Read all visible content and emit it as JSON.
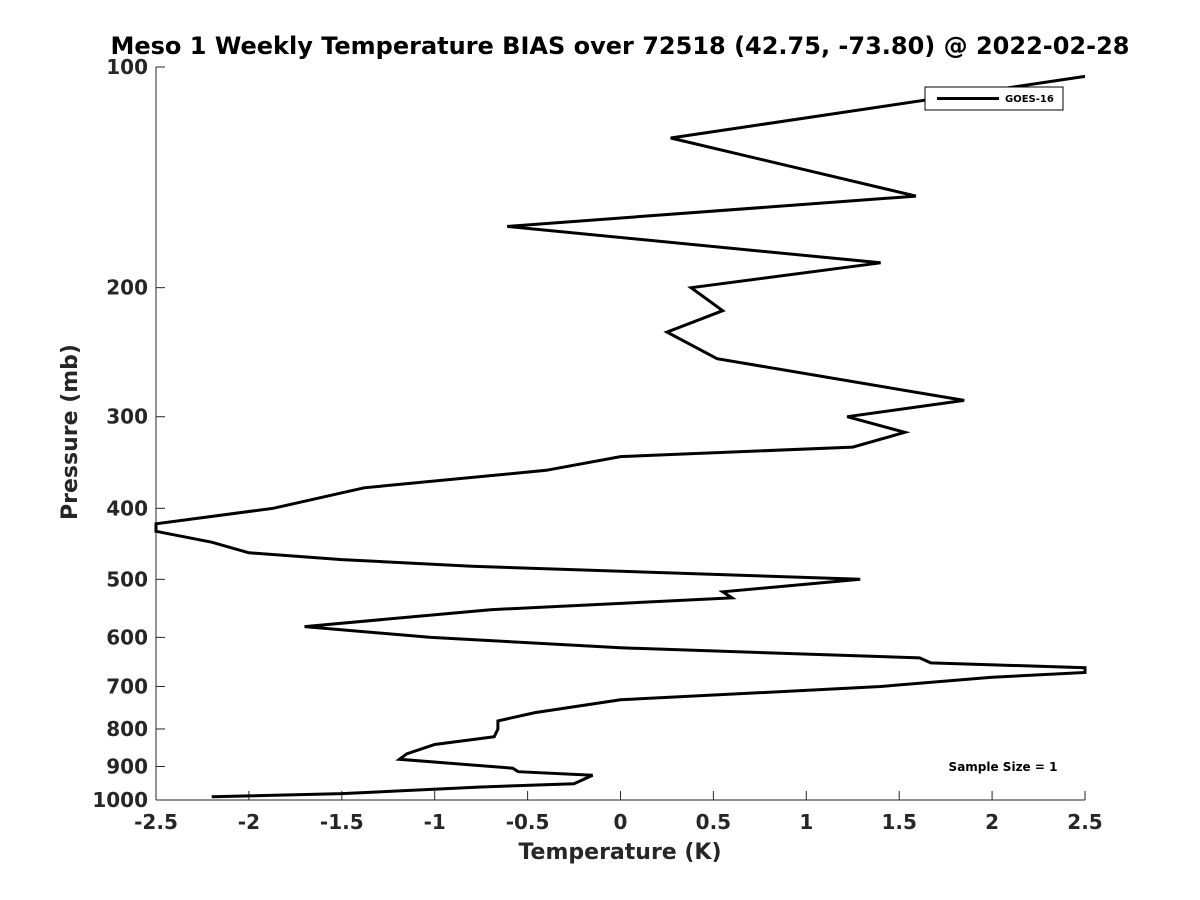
{
  "chart_data": {
    "type": "line",
    "title": "Meso 1 Weekly Temperature BIAS over 72518 (42.75, -73.80) @ 2022-02-28",
    "xlabel": "Temperature (K)",
    "ylabel": "Pressure (mb)",
    "xlim": [
      -2.5,
      2.5
    ],
    "ylim": [
      100,
      1000
    ],
    "y_scale": "log",
    "y_direction": "reversed",
    "x_ticks": [
      -2.5,
      -2,
      -1.5,
      -1,
      -0.5,
      0,
      0.5,
      1,
      1.5,
      2,
      2.5
    ],
    "x_tick_labels": [
      "-2.5",
      "-2",
      "-1.5",
      "-1",
      "-0.5",
      "0",
      "0.5",
      "1",
      "1.5",
      "2",
      "2.5"
    ],
    "y_ticks": [
      100,
      200,
      300,
      400,
      500,
      600,
      700,
      800,
      900,
      1000
    ],
    "y_tick_labels": [
      "100",
      "200",
      "300",
      "400",
      "500",
      "600",
      "700",
      "800",
      "900",
      "1000"
    ],
    "grid": false,
    "legend_position": "top-right",
    "series": [
      {
        "name": "GOES-16",
        "color": "#000000",
        "points": [
          {
            "p": 103,
            "t": 2.5
          },
          {
            "p": 125,
            "t": 0.27
          },
          {
            "p": 150,
            "t": 1.59
          },
          {
            "p": 165,
            "t": -0.61
          },
          {
            "p": 185,
            "t": 1.4
          },
          {
            "p": 200,
            "t": 0.38
          },
          {
            "p": 215,
            "t": 0.55
          },
          {
            "p": 230,
            "t": 0.25
          },
          {
            "p": 250,
            "t": 0.52
          },
          {
            "p": 285,
            "t": 1.85
          },
          {
            "p": 300,
            "t": 1.22
          },
          {
            "p": 315,
            "t": 1.53
          },
          {
            "p": 330,
            "t": 1.25
          },
          {
            "p": 340,
            "t": 0.0
          },
          {
            "p": 355,
            "t": -0.4
          },
          {
            "p": 375,
            "t": -1.38
          },
          {
            "p": 400,
            "t": -1.87
          },
          {
            "p": 420,
            "t": -2.5
          },
          {
            "p": 430,
            "t": -2.5
          },
          {
            "p": 445,
            "t": -2.2
          },
          {
            "p": 460,
            "t": -2.0
          },
          {
            "p": 470,
            "t": -1.5
          },
          {
            "p": 480,
            "t": -0.8
          },
          {
            "p": 500,
            "t": 1.29
          },
          {
            "p": 520,
            "t": 0.55
          },
          {
            "p": 530,
            "t": 0.6
          },
          {
            "p": 550,
            "t": -0.7
          },
          {
            "p": 580,
            "t": -1.7
          },
          {
            "p": 600,
            "t": -1.02
          },
          {
            "p": 620,
            "t": 0.0
          },
          {
            "p": 640,
            "t": 1.61
          },
          {
            "p": 650,
            "t": 1.67
          },
          {
            "p": 660,
            "t": 2.5
          },
          {
            "p": 670,
            "t": 2.5
          },
          {
            "p": 680,
            "t": 2.0
          },
          {
            "p": 700,
            "t": 1.4
          },
          {
            "p": 730,
            "t": 0.0
          },
          {
            "p": 760,
            "t": -0.46
          },
          {
            "p": 780,
            "t": -0.66
          },
          {
            "p": 800,
            "t": -0.66
          },
          {
            "p": 820,
            "t": -0.68
          },
          {
            "p": 840,
            "t": -1.0
          },
          {
            "p": 865,
            "t": -1.15
          },
          {
            "p": 880,
            "t": -1.19
          },
          {
            "p": 905,
            "t": -0.58
          },
          {
            "p": 915,
            "t": -0.55
          },
          {
            "p": 925,
            "t": -0.15
          },
          {
            "p": 950,
            "t": -0.25
          },
          {
            "p": 960,
            "t": -0.75
          },
          {
            "p": 980,
            "t": -1.5
          },
          {
            "p": 990,
            "t": -2.2
          }
        ]
      }
    ],
    "annotations": [
      {
        "text": "Sample Size = 1",
        "position": "bottom-right"
      }
    ]
  }
}
